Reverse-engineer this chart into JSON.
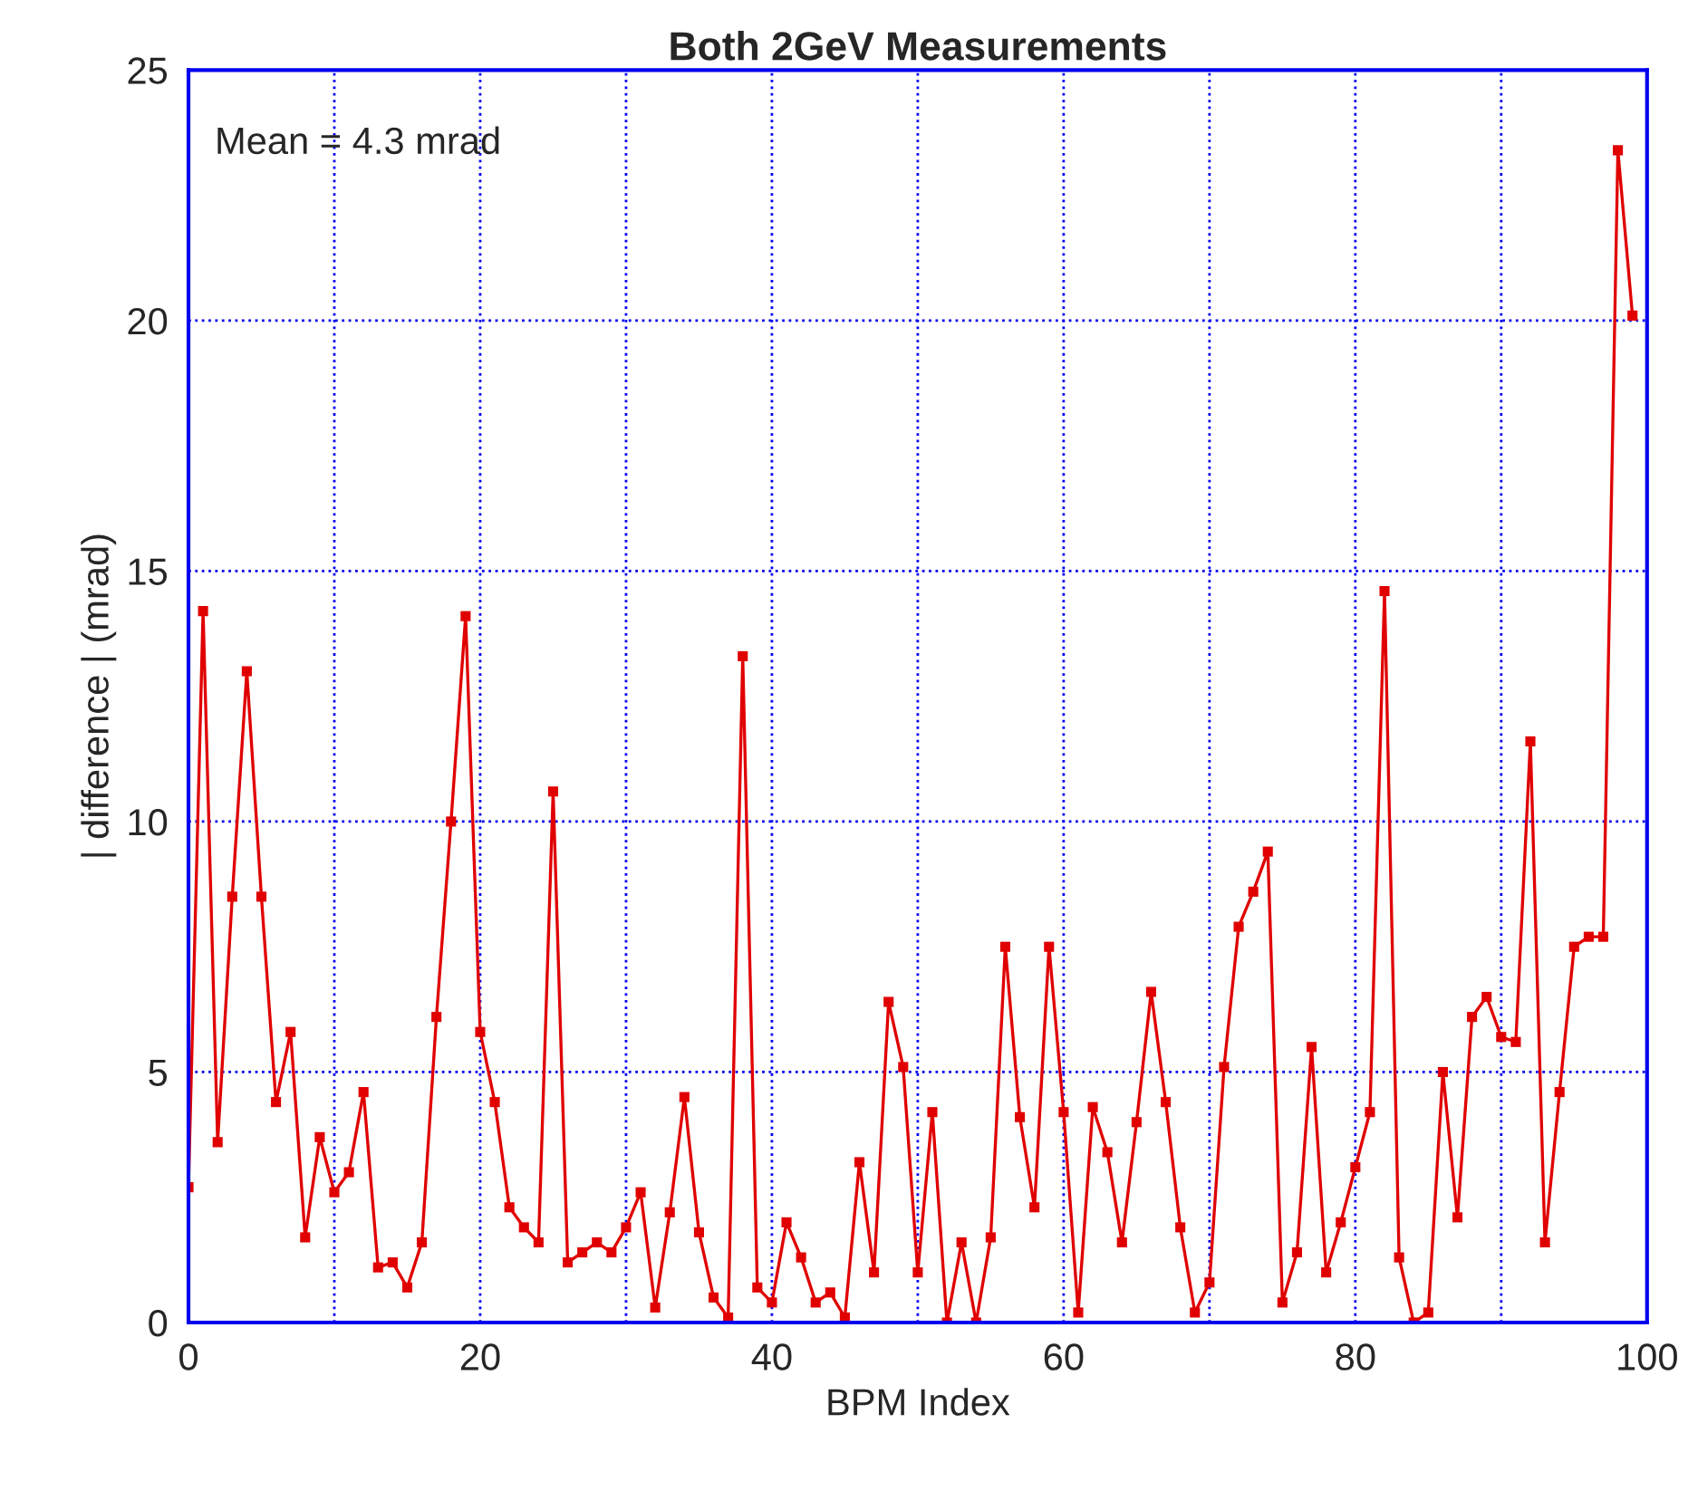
{
  "chart_data": {
    "type": "line",
    "title": "Both 2GeV Measurements",
    "xlabel": "BPM Index",
    "ylabel": "| difference | (mrad)",
    "annotations": [
      "Mean = 4.3 mrad"
    ],
    "x": [
      0,
      1,
      2,
      3,
      4,
      5,
      6,
      7,
      8,
      9,
      10,
      11,
      12,
      13,
      14,
      15,
      16,
      17,
      18,
      19,
      20,
      21,
      22,
      23,
      24,
      25,
      26,
      27,
      28,
      29,
      30,
      31,
      32,
      33,
      34,
      35,
      36,
      37,
      38,
      39,
      40,
      41,
      42,
      43,
      44,
      45,
      46,
      47,
      48,
      49,
      50,
      51,
      52,
      53,
      54,
      55,
      56,
      57,
      58,
      59,
      60,
      61,
      62,
      63,
      64,
      65,
      66,
      67,
      68,
      69,
      70,
      71,
      72,
      73,
      74,
      75,
      76,
      77,
      78,
      79,
      80,
      81,
      82,
      83,
      84,
      85,
      86,
      87,
      88,
      89,
      90,
      91,
      92,
      93,
      94,
      95,
      96,
      97,
      98,
      99
    ],
    "series": [
      {
        "color": "#e00000",
        "values": [
          2.7,
          14.2,
          3.6,
          8.5,
          13.0,
          8.5,
          4.4,
          5.8,
          1.7,
          3.7,
          2.6,
          3.0,
          4.6,
          1.1,
          1.2,
          0.7,
          1.6,
          6.1,
          10.0,
          14.1,
          5.8,
          4.4,
          2.3,
          1.9,
          1.6,
          10.6,
          1.2,
          1.4,
          1.6,
          1.4,
          1.9,
          2.6,
          0.3,
          2.2,
          4.5,
          1.8,
          0.5,
          0.1,
          13.3,
          0.7,
          0.4,
          2.0,
          1.3,
          0.4,
          0.6,
          0.1,
          3.2,
          1.0,
          6.4,
          5.1,
          1.0,
          4.2,
          0.0,
          1.6,
          0.0,
          1.7,
          7.5,
          4.1,
          2.3,
          7.5,
          4.2,
          0.2,
          4.3,
          3.4,
          1.6,
          4.0,
          6.6,
          4.4,
          1.9,
          0.2,
          0.8,
          5.1,
          7.9,
          8.6,
          9.4,
          0.4,
          1.4,
          5.5,
          1.0,
          2.0,
          3.1,
          4.2,
          14.6,
          1.3,
          0.0,
          0.2,
          5.0,
          2.1,
          6.1,
          6.5,
          5.7,
          5.6,
          11.6,
          1.6,
          4.6,
          7.5,
          7.7,
          7.7,
          23.4,
          20.1
        ]
      }
    ],
    "xlim": [
      0,
      100
    ],
    "xticks": [
      0,
      {
        "value": 10,
        "label": null
      },
      20,
      {
        "value": 30,
        "label": null
      },
      40,
      {
        "value": 50,
        "label": null
      },
      60,
      {
        "value": 70,
        "label": null
      },
      80,
      {
        "value": 90,
        "label": null
      },
      100
    ],
    "ylim": [
      0,
      25
    ],
    "yticks": [
      0,
      5,
      10,
      15,
      20,
      25
    ],
    "grid": true,
    "marker": "square",
    "line_style": "solid"
  }
}
